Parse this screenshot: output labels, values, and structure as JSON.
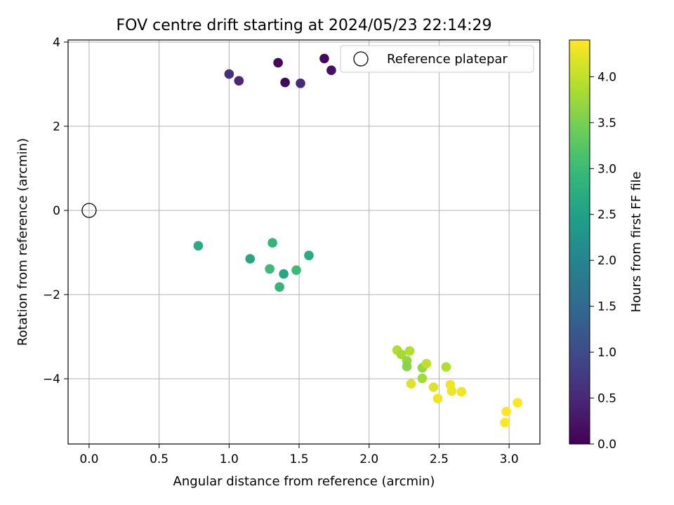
{
  "chart_data": {
    "type": "scatter",
    "title": "FOV centre drift starting at 2024/05/23 22:14:29",
    "xlabel": "Angular distance from reference (arcmin)",
    "ylabel": "Rotation from reference (arcmin)",
    "xlim": [
      -0.15,
      3.22
    ],
    "ylim": [
      -5.55,
      4.05
    ],
    "xticks": [
      "0.0",
      "0.5",
      "1.0",
      "1.5",
      "2.0",
      "2.5",
      "3.0"
    ],
    "xtick_values": [
      0.0,
      0.5,
      1.0,
      1.5,
      2.0,
      2.5,
      3.0
    ],
    "yticks": [
      "−4",
      "−2",
      "0",
      "2",
      "4"
    ],
    "ytick_values": [
      -4,
      -2,
      0,
      2,
      4
    ],
    "grid": true,
    "legend": {
      "position": "top-right",
      "entries": [
        "Reference platepar"
      ]
    },
    "reference_point": {
      "x": 0.0,
      "y": 0.0,
      "label": "Reference platepar"
    },
    "colorbar": {
      "label": "Hours from first FF file",
      "colormap": "viridis",
      "range": [
        0.0,
        4.4
      ],
      "ticks": [
        "0.0",
        "0.5",
        "1.0",
        "1.5",
        "2.0",
        "2.5",
        "3.0",
        "3.5",
        "4.0"
      ],
      "tick_values": [
        0.0,
        0.5,
        1.0,
        1.5,
        2.0,
        2.5,
        3.0,
        3.5,
        4.0
      ]
    },
    "points": [
      {
        "x": 1.0,
        "y": 3.24,
        "hours": 0.6
      },
      {
        "x": 1.07,
        "y": 3.08,
        "hours": 0.5
      },
      {
        "x": 1.35,
        "y": 3.51,
        "hours": 0.1
      },
      {
        "x": 1.4,
        "y": 3.04,
        "hours": 0.1
      },
      {
        "x": 1.51,
        "y": 3.02,
        "hours": 0.5
      },
      {
        "x": 1.68,
        "y": 3.61,
        "hours": 0.1
      },
      {
        "x": 1.73,
        "y": 3.33,
        "hours": 0.2
      },
      {
        "x": 0.78,
        "y": -0.84,
        "hours": 2.7
      },
      {
        "x": 1.15,
        "y": -1.15,
        "hours": 2.6
      },
      {
        "x": 1.29,
        "y": -1.39,
        "hours": 3.0
      },
      {
        "x": 1.31,
        "y": -0.77,
        "hours": 2.9
      },
      {
        "x": 1.36,
        "y": -1.82,
        "hours": 2.9
      },
      {
        "x": 1.39,
        "y": -1.51,
        "hours": 2.6
      },
      {
        "x": 1.48,
        "y": -1.42,
        "hours": 3.0
      },
      {
        "x": 1.57,
        "y": -1.07,
        "hours": 2.7
      },
      {
        "x": 2.2,
        "y": -3.32,
        "hours": 3.9
      },
      {
        "x": 2.23,
        "y": -3.42,
        "hours": 3.8
      },
      {
        "x": 2.27,
        "y": -3.57,
        "hours": 3.7
      },
      {
        "x": 2.27,
        "y": -3.71,
        "hours": 3.6
      },
      {
        "x": 2.29,
        "y": -3.34,
        "hours": 3.9
      },
      {
        "x": 2.3,
        "y": -4.12,
        "hours": 4.2
      },
      {
        "x": 2.38,
        "y": -3.99,
        "hours": 3.8
      },
      {
        "x": 2.38,
        "y": -3.74,
        "hours": 3.7
      },
      {
        "x": 2.41,
        "y": -3.64,
        "hours": 4.0
      },
      {
        "x": 2.46,
        "y": -4.2,
        "hours": 4.2
      },
      {
        "x": 2.49,
        "y": -4.47,
        "hours": 4.3
      },
      {
        "x": 2.55,
        "y": -3.72,
        "hours": 3.9
      },
      {
        "x": 2.58,
        "y": -4.14,
        "hours": 4.3
      },
      {
        "x": 2.59,
        "y": -4.29,
        "hours": 4.3
      },
      {
        "x": 2.66,
        "y": -4.31,
        "hours": 4.3
      },
      {
        "x": 2.97,
        "y": -5.04,
        "hours": 4.4
      },
      {
        "x": 2.98,
        "y": -4.78,
        "hours": 4.4
      },
      {
        "x": 3.06,
        "y": -4.57,
        "hours": 4.4
      }
    ]
  }
}
